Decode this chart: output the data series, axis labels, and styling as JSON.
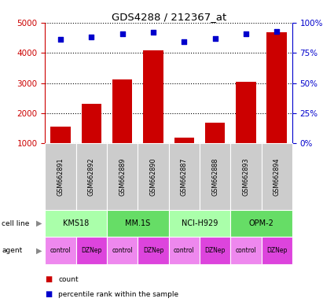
{
  "title": "GDS4288 / 212367_at",
  "samples": [
    "GSM662891",
    "GSM662892",
    "GSM662889",
    "GSM662890",
    "GSM662887",
    "GSM662888",
    "GSM662893",
    "GSM662894"
  ],
  "counts": [
    1550,
    2320,
    3120,
    4080,
    1190,
    1680,
    3030,
    4680
  ],
  "percentile_ranks": [
    86,
    88,
    91,
    92,
    84,
    87,
    91,
    93
  ],
  "cell_lines": [
    {
      "label": "KMS18",
      "start": 0,
      "end": 2,
      "color": "#aaffaa"
    },
    {
      "label": "MM.1S",
      "start": 2,
      "end": 4,
      "color": "#66dd66"
    },
    {
      "label": "NCI-H929",
      "start": 4,
      "end": 6,
      "color": "#aaffaa"
    },
    {
      "label": "OPM-2",
      "start": 6,
      "end": 8,
      "color": "#66dd66"
    }
  ],
  "agents": [
    {
      "label": "control",
      "color": "#ee88ee"
    },
    {
      "label": "DZNep",
      "color": "#dd44dd"
    },
    {
      "label": "control",
      "color": "#ee88ee"
    },
    {
      "label": "DZNep",
      "color": "#dd44dd"
    },
    {
      "label": "control",
      "color": "#ee88ee"
    },
    {
      "label": "DZNep",
      "color": "#dd44dd"
    },
    {
      "label": "control",
      "color": "#ee88ee"
    },
    {
      "label": "DZNep",
      "color": "#dd44dd"
    }
  ],
  "bar_color": "#cc0000",
  "dot_color": "#0000cc",
  "left_axis_color": "#cc0000",
  "right_axis_color": "#0000cc",
  "left_ylim": [
    1000,
    5000
  ],
  "right_ylim": [
    0,
    100
  ],
  "left_yticks": [
    1000,
    2000,
    3000,
    4000,
    5000
  ],
  "right_yticks": [
    0,
    25,
    50,
    75,
    100
  ],
  "right_yticklabels": [
    "0%",
    "25%",
    "50%",
    "75%",
    "100%"
  ],
  "gsm_bg_color": "#cccccc",
  "legend_count_color": "#cc0000",
  "legend_pct_color": "#0000cc"
}
